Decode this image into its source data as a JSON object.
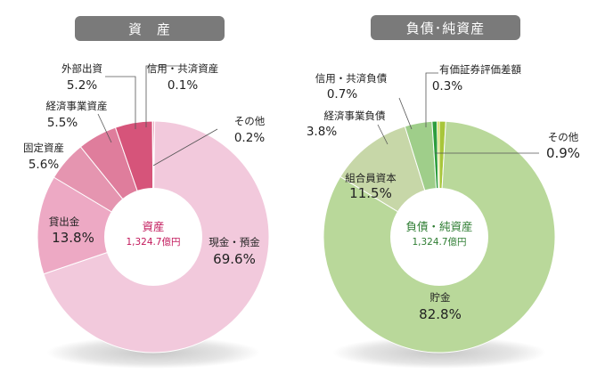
{
  "chart_data": [
    {
      "type": "pie",
      "title": "資　産",
      "center_title": "資産",
      "center_total": "1,324.7億円",
      "title_color": "#7a7a7a",
      "center_color": "#c2185b",
      "slices": [
        {
          "label": "現金・預金",
          "value": 69.6,
          "value_label": "69.6%",
          "color": "#f2c9dc"
        },
        {
          "label": "貸出金",
          "value": 13.8,
          "value_label": "13.8%",
          "color": "#eda9c4"
        },
        {
          "label": "固定資産",
          "value": 5.6,
          "value_label": "5.6%",
          "color": "#e595b0"
        },
        {
          "label": "経済事業資産",
          "value": 5.5,
          "value_label": "5.5%",
          "color": "#df7d9c"
        },
        {
          "label": "外部出資",
          "value": 5.2,
          "value_label": "5.2%",
          "color": "#d6547a"
        },
        {
          "label": "信用・共済資産",
          "value": 0.1,
          "value_label": "0.1%",
          "color": "#c93a66"
        },
        {
          "label": "その他",
          "value": 0.2,
          "value_label": "0.2%",
          "color": "#d94f7c"
        }
      ]
    },
    {
      "type": "pie",
      "title": "負債･純資産",
      "center_title": "負債・純資産",
      "center_total": "1,324.7億円",
      "title_color": "#7a7a7a",
      "center_color": "#2e7d32",
      "slices": [
        {
          "label": "貯金",
          "value": 82.8,
          "value_label": "82.8%",
          "color": "#b9d89a"
        },
        {
          "label": "組合員資本",
          "value": 11.5,
          "value_label": "11.5%",
          "color": "#c7d7a8"
        },
        {
          "label": "経済事業負債",
          "value": 3.8,
          "value_label": "3.8%",
          "color": "#9fce8a"
        },
        {
          "label": "信用・共済負債",
          "value": 0.7,
          "value_label": "0.7%",
          "color": "#2e9d3e"
        },
        {
          "label": "有価証券評価差額",
          "value": 0.3,
          "value_label": "0.3%",
          "color": "#cdd63a"
        },
        {
          "label": "その他",
          "value": 0.9,
          "value_label": "0.9%",
          "color": "#a8c63a"
        }
      ]
    }
  ]
}
